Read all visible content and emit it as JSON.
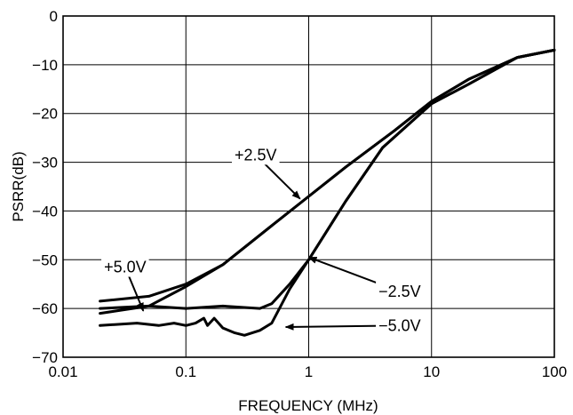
{
  "chart_data": {
    "type": "line",
    "title": "",
    "xlabel": "FREQUENCY (MHz)",
    "ylabel": "PSRR(dB)",
    "xscale": "log",
    "xlim": [
      0.01,
      100
    ],
    "ylim": [
      -70,
      0
    ],
    "grid": true,
    "legend": "none",
    "line_color": "#000000",
    "x_ticks": [
      {
        "value": 0.01,
        "label": "0.01"
      },
      {
        "value": 0.1,
        "label": "0.1"
      },
      {
        "value": 1,
        "label": "1"
      },
      {
        "value": 10,
        "label": "10"
      },
      {
        "value": 100,
        "label": "100"
      }
    ],
    "y_ticks": [
      {
        "value": 0,
        "label": "0"
      },
      {
        "value": -10,
        "label": "−10"
      },
      {
        "value": -20,
        "label": "−20"
      },
      {
        "value": -30,
        "label": "−30"
      },
      {
        "value": -40,
        "label": "−40"
      },
      {
        "value": -50,
        "label": "−50"
      },
      {
        "value": -60,
        "label": "−60"
      },
      {
        "value": -70,
        "label": "−70"
      }
    ],
    "series": [
      {
        "name": "+2.5V",
        "x": [
          0.02,
          0.05,
          0.1,
          0.2,
          0.5,
          1,
          2,
          5,
          10,
          20,
          50,
          100
        ],
        "y": [
          -58.5,
          -57.5,
          -55,
          -51,
          -43,
          -37,
          -31,
          -23.5,
          -17.5,
          -13,
          -8.5,
          -7
        ]
      },
      {
        "name": "+5.0V",
        "x": [
          0.02,
          0.05,
          0.1,
          0.2,
          0.5,
          1,
          2,
          5,
          10,
          20,
          50,
          100
        ],
        "y": [
          -61,
          -59.5,
          -55.5,
          -51,
          -43,
          -37,
          -31,
          -23.5,
          -17.5,
          -13,
          -8.5,
          -7
        ]
      },
      {
        "name": "−2.5V",
        "x": [
          0.02,
          0.05,
          0.1,
          0.2,
          0.4,
          0.5,
          0.7,
          1,
          2,
          4,
          10,
          20,
          50,
          100
        ],
        "y": [
          -60,
          -59.5,
          -60,
          -59.5,
          -60,
          -59,
          -55,
          -50,
          -38,
          -27,
          -18,
          -14,
          -8.5,
          -7
        ]
      },
      {
        "name": "−5.0V",
        "x": [
          0.02,
          0.04,
          0.06,
          0.08,
          0.1,
          0.12,
          0.14,
          0.15,
          0.17,
          0.2,
          0.25,
          0.3,
          0.4,
          0.5,
          0.7,
          1,
          2,
          4,
          10,
          20,
          50,
          100
        ],
        "y": [
          -63.5,
          -63,
          -63.5,
          -63,
          -63.5,
          -63,
          -62,
          -63.5,
          -62,
          -64,
          -65,
          -65.5,
          -64.5,
          -63,
          -56,
          -50,
          -38,
          -27,
          -18,
          -14,
          -8.5,
          -7
        ]
      }
    ],
    "annotations": [
      {
        "text": "+2.5V",
        "label_x": 0.37,
        "label_y": -28.5,
        "target_x": 0.85,
        "target_y": -37.5
      },
      {
        "text": "+5.0V",
        "label_x": 0.032,
        "label_y": -51.5,
        "target_x": 0.045,
        "target_y": -60.5
      },
      {
        "text": "−2.5V",
        "label_x": 5.5,
        "label_y": -56.5,
        "target_x": 1.0,
        "target_y": -49.5
      },
      {
        "text": "−5.0V",
        "label_x": 5.5,
        "label_y": -63.5,
        "target_x": 0.65,
        "target_y": -63.8
      }
    ]
  }
}
